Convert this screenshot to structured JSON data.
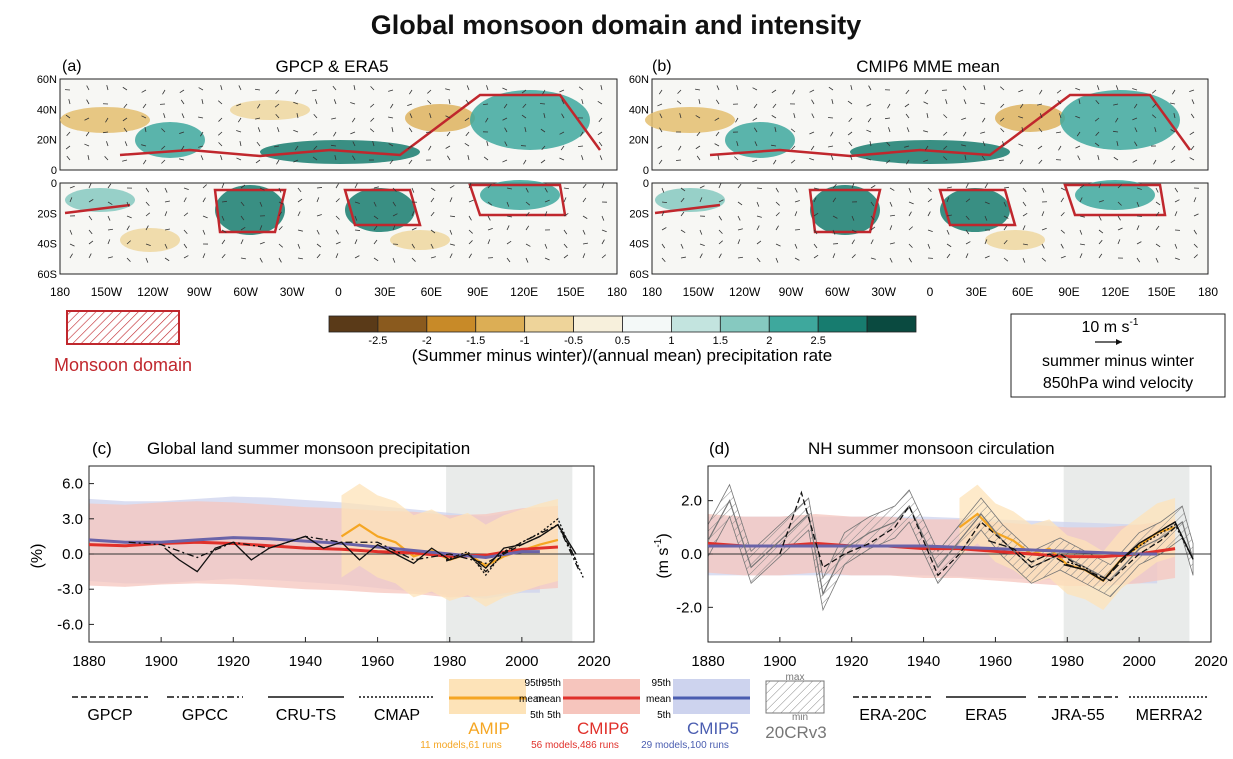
{
  "title": "Global monsoon domain and intensity",
  "maps": [
    {
      "label": "(a)",
      "title": "GPCP & ERA5"
    },
    {
      "label": "(b)",
      "title": "CMIP6 MME mean"
    }
  ],
  "map_axes": {
    "lat_north": [
      "60N",
      "40N",
      "20N",
      "0"
    ],
    "lat_south": [
      "0",
      "20S",
      "40S",
      "60S"
    ],
    "lon": [
      "180",
      "150W",
      "120W",
      "90W",
      "60W",
      "30W",
      "0",
      "30E",
      "60E",
      "90E",
      "120E",
      "150E",
      "180"
    ]
  },
  "monsoon_legend": {
    "label": "Monsoon domain",
    "color": "#c0272d"
  },
  "colorbar": {
    "ticks": [
      "-2.5",
      "-2",
      "-1.5",
      "-1",
      "-0.5",
      "0.5",
      "1",
      "1.5",
      "2",
      "2.5"
    ],
    "colors": [
      "#5a3a18",
      "#8a5a1e",
      "#c88a28",
      "#dcae55",
      "#eed49a",
      "#f7f0dc",
      "#f4f9f8",
      "#c3e4df",
      "#86c9c0",
      "#3ea89d",
      "#177c6f",
      "#0a4a40"
    ],
    "label": "(Summer minus winter)/(annual mean) precipitation rate"
  },
  "wind_legend": {
    "scale": "10 m s",
    "scale_sup": "-1",
    "line1": "summer minus winter",
    "line2": "850hPa wind velocity"
  },
  "chart_data": [
    {
      "type": "line",
      "panel": "(c)",
      "title": "Global land summer monsoon precipitation",
      "ylabel": "(%)",
      "xlim": [
        1880,
        2020
      ],
      "ylim": [
        -7.5,
        7.5
      ],
      "xticks": [
        1880,
        1900,
        1920,
        1940,
        1960,
        1980,
        2000,
        2020
      ],
      "yticks": [
        6.0,
        3.0,
        0.0,
        -3.0,
        -6.0
      ],
      "ytick_labels": [
        "6.0",
        "3.0",
        "0.0",
        "-3.0",
        "-6.0"
      ],
      "shaded_period": [
        1979,
        2014
      ],
      "series": [
        {
          "name": "AMIP",
          "x": [
            1950,
            1955,
            1960,
            1965,
            1970,
            1975,
            1980,
            1985,
            1990,
            1995,
            2000,
            2005,
            2010
          ],
          "y": [
            1.5,
            2.5,
            1.5,
            1.0,
            -0.2,
            0.3,
            -0.5,
            0.0,
            -1.0,
            -0.2,
            0.3,
            0.8,
            1.2
          ]
        },
        {
          "name": "CMIP6",
          "x": [
            1880,
            1890,
            1900,
            1910,
            1920,
            1930,
            1940,
            1950,
            1960,
            1970,
            1980,
            1990,
            2000,
            2010
          ],
          "y": [
            0.8,
            0.7,
            0.9,
            1.0,
            0.9,
            0.7,
            0.5,
            0.4,
            0.2,
            0.1,
            -0.2,
            -0.1,
            0.4,
            0.6
          ]
        },
        {
          "name": "CMIP5",
          "x": [
            1880,
            1890,
            1900,
            1910,
            1920,
            1930,
            1940,
            1950,
            1960,
            1970,
            1980,
            1990,
            2000,
            2005
          ],
          "y": [
            1.2,
            1.0,
            1.0,
            1.2,
            1.4,
            1.3,
            1.1,
            0.9,
            0.6,
            0.3,
            0.0,
            -0.3,
            0.2,
            0.2
          ]
        },
        {
          "name": "GPCC",
          "x": [
            1891,
            1900,
            1910,
            1920,
            1930,
            1940,
            1950,
            1960,
            1970,
            1980,
            1990,
            2000,
            2010,
            2016
          ],
          "y": [
            1.0,
            0.8,
            -0.3,
            1.0,
            0.5,
            1.5,
            1.0,
            1.0,
            -0.5,
            0.0,
            -0.8,
            1.0,
            2.5,
            -1.5
          ]
        },
        {
          "name": "CRU-TS",
          "x": [
            1901,
            1905,
            1910,
            1915,
            1920,
            1925,
            1930,
            1935,
            1940,
            1945,
            1950,
            1955,
            1960,
            1965,
            1970,
            1975,
            1980,
            1985,
            1990,
            1995,
            2000,
            2005,
            2010,
            2015
          ],
          "y": [
            0.5,
            -0.5,
            -1.5,
            0.5,
            1.0,
            -0.5,
            0.5,
            1.0,
            1.5,
            0.5,
            1.0,
            -0.5,
            0.8,
            0.0,
            -0.8,
            0.5,
            -0.5,
            0.0,
            -1.2,
            0.5,
            0.8,
            1.5,
            2.5,
            0.0
          ]
        },
        {
          "name": "GPCP",
          "x": [
            1979,
            1985,
            1990,
            1995,
            2000,
            2005,
            2010,
            2015
          ],
          "y": [
            -0.6,
            0.0,
            -1.5,
            0.0,
            0.8,
            1.5,
            2.5,
            -0.5
          ]
        },
        {
          "name": "CMAP",
          "x": [
            1979,
            1985,
            1990,
            1995,
            2000,
            2005,
            2010,
            2017
          ],
          "y": [
            -0.5,
            0.2,
            -1.8,
            0.2,
            1.0,
            1.8,
            3.0,
            -2.0
          ]
        }
      ]
    },
    {
      "type": "line",
      "panel": "(d)",
      "title": "NH summer monsoon circulation",
      "ylabel": "(m s",
      "ylabel_sup": "-1",
      "xlim": [
        1880,
        2020
      ],
      "ylim": [
        -3.3,
        3.3
      ],
      "xticks": [
        1880,
        1900,
        1920,
        1940,
        1960,
        1980,
        2000,
        2020
      ],
      "yticks": [
        2.0,
        0.0,
        -2.0
      ],
      "ytick_labels": [
        "2.0",
        "0.0",
        "-2.0"
      ],
      "shaded_period": [
        1979,
        2014
      ],
      "series": [
        {
          "name": "AMIP",
          "x": [
            1950,
            1955,
            1960,
            1965,
            1970,
            1975,
            1980,
            1985,
            1990,
            1995,
            2000,
            2005,
            2010
          ],
          "y": [
            1.0,
            1.5,
            0.8,
            0.5,
            0.0,
            0.2,
            -0.4,
            -0.6,
            -1.0,
            -0.2,
            0.3,
            0.8,
            1.0
          ]
        },
        {
          "name": "CMIP6",
          "x": [
            1880,
            1890,
            1900,
            1910,
            1920,
            1930,
            1940,
            1950,
            1960,
            1970,
            1980,
            1990,
            2000,
            2010
          ],
          "y": [
            0.4,
            0.3,
            0.3,
            0.4,
            0.3,
            0.3,
            0.2,
            0.2,
            0.1,
            0.0,
            -0.1,
            -0.1,
            0.0,
            0.2
          ]
        },
        {
          "name": "CMIP5",
          "x": [
            1880,
            1900,
            1920,
            1940,
            1960,
            1980,
            2000,
            2005
          ],
          "y": [
            0.3,
            0.3,
            0.3,
            0.3,
            0.2,
            0.1,
            0.0,
            0.0
          ]
        },
        {
          "name": "20CRv3",
          "x": [
            1880,
            1886,
            1892,
            1900,
            1908,
            1912,
            1918,
            1925,
            1932,
            1936,
            1944,
            1950,
            1956,
            1962,
            1970,
            1978,
            1985,
            1992,
            2000,
            2006,
            2012,
            2015
          ],
          "y": [
            0.5,
            2.0,
            -0.5,
            0.5,
            1.5,
            -1.5,
            0.2,
            0.8,
            1.2,
            1.8,
            -0.5,
            0.5,
            1.5,
            0.5,
            -0.5,
            0.0,
            -0.5,
            -1.0,
            0.2,
            0.6,
            1.2,
            -0.2
          ]
        },
        {
          "name": "ERA-20C",
          "x": [
            1900,
            1906,
            1912,
            1918,
            1925,
            1932,
            1936,
            1944,
            1950,
            1956,
            1962,
            1970,
            1978,
            1985,
            1992,
            2000,
            2006,
            2010
          ],
          "y": [
            0.0,
            2.3,
            -0.5,
            0.0,
            0.4,
            1.0,
            1.8,
            -0.8,
            0.0,
            1.2,
            0.5,
            -0.5,
            0.0,
            -0.6,
            -1.0,
            0.0,
            0.5,
            1.0
          ]
        },
        {
          "name": "ERA5",
          "x": [
            1979,
            1985,
            1990,
            1995,
            2000,
            2005,
            2010,
            2015
          ],
          "y": [
            -0.4,
            -0.6,
            -1.0,
            -0.2,
            0.4,
            0.8,
            1.2,
            -0.2
          ]
        },
        {
          "name": "JRA-55",
          "x": [
            1958,
            1965,
            1970,
            1975,
            1980,
            1985,
            1990,
            1995,
            2000,
            2005,
            2010,
            2015
          ],
          "y": [
            0.5,
            0.2,
            -0.3,
            0.0,
            -0.4,
            -0.6,
            -1.0,
            -0.3,
            0.4,
            0.8,
            1.2,
            -0.2
          ]
        },
        {
          "name": "MERRA2",
          "x": [
            1980,
            1985,
            1990,
            1995,
            2000,
            2005,
            2010,
            2015
          ],
          "y": [
            -0.3,
            -0.5,
            -1.0,
            -0.2,
            0.3,
            0.7,
            1.1,
            -0.2
          ]
        }
      ]
    }
  ],
  "legend": {
    "obs_c": [
      "GPCP",
      "GPCC",
      "CRU-TS",
      "CMAP"
    ],
    "envelope_top": "95th",
    "envelope_mid": "mean",
    "envelope_bot": "5th",
    "models": [
      {
        "name": "AMIP",
        "color": "#f5a623",
        "band": "#fde3b8",
        "note": "11 models,61 runs"
      },
      {
        "name": "CMIP6",
        "color": "#e0302a",
        "band": "#f6c5bd",
        "note": "56 models,486 runs"
      },
      {
        "name": "CMIP5",
        "color": "#4a5db0",
        "band": "#cdd3ee",
        "note": "29 models,100 runs"
      }
    ],
    "cr20": {
      "name": "20CRv3",
      "max": "max",
      "min": "min"
    },
    "obs_d": [
      "ERA-20C",
      "ERA5",
      "JRA-55",
      "MERRA2"
    ]
  }
}
